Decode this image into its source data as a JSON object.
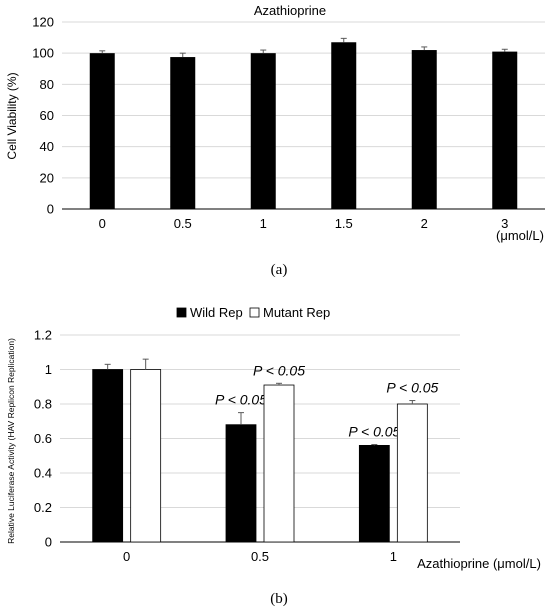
{
  "chart_data": [
    {
      "type": "bar",
      "title": "Azathioprine",
      "ylabel": "Cell Viability (%)",
      "xlabel": "",
      "x_unit_label": "(μmol/L)",
      "caption": "(a)",
      "categories": [
        "0",
        "0.5",
        "1",
        "1.5",
        "2",
        "3"
      ],
      "values": [
        100,
        97.5,
        100,
        107,
        102,
        101
      ],
      "errors": [
        1.5,
        2.5,
        2,
        2.5,
        2,
        1.5
      ],
      "ylim": [
        0,
        120
      ],
      "yticks": [
        "0",
        "20",
        "40",
        "60",
        "80",
        "100",
        "120"
      ],
      "grid": true,
      "bar_color": "#000000"
    },
    {
      "type": "bar",
      "title": "",
      "ylabel": "Relative Luciferase Activity (HAV Replicon Replication)",
      "xlabel": "Azathioprine (μmol/L)",
      "caption": "(b)",
      "categories": [
        "0",
        "0.5",
        "1"
      ],
      "ylim": [
        0,
        1.2
      ],
      "yticks": [
        "0",
        "0.2",
        "0.4",
        "0.6",
        "0.8",
        "1",
        "1.2"
      ],
      "grid": true,
      "legend_position": "top",
      "series": [
        {
          "name": "Wild Rep",
          "values": [
            1.0,
            0.68,
            0.56
          ],
          "errors": [
            0.03,
            0.07,
            0.005
          ],
          "color": "#000000",
          "annotations": [
            "",
            "P < 0.05",
            "P < 0.05"
          ]
        },
        {
          "name": "Mutant Rep",
          "values": [
            1.0,
            0.91,
            0.8
          ],
          "errors": [
            0.06,
            0.01,
            0.02
          ],
          "color": "#ffffff",
          "annotations": [
            "",
            "P < 0.05",
            "P < 0.05"
          ]
        }
      ]
    }
  ]
}
